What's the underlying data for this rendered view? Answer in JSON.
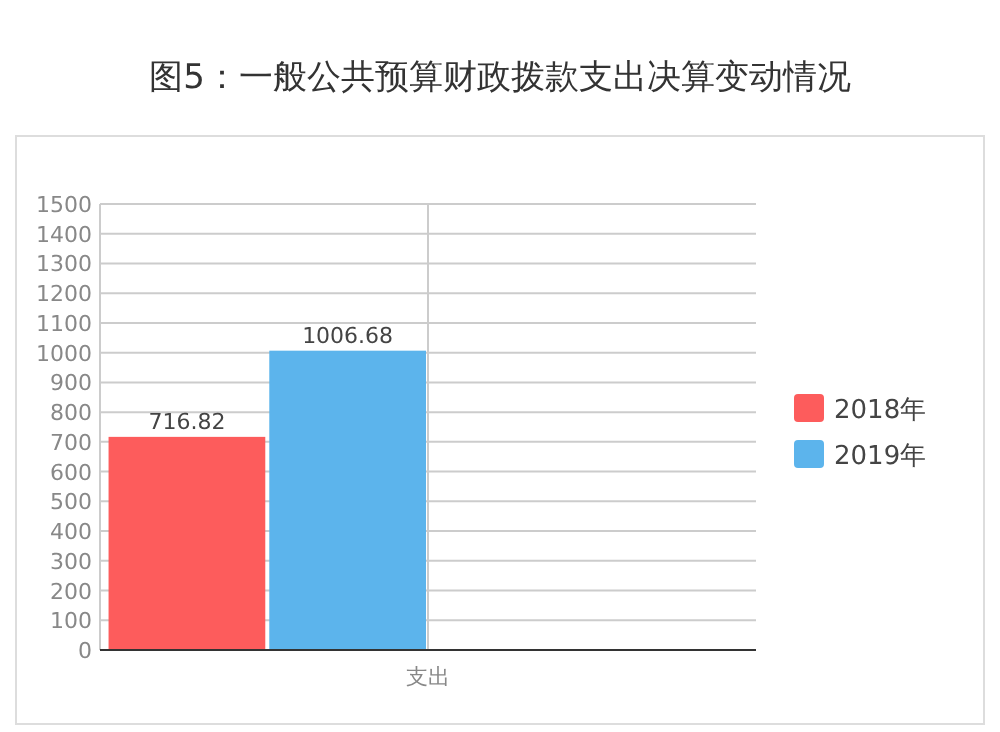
{
  "chart_data": {
    "type": "bar",
    "title": "图5：一般公共预算财政拨款支出决算变动情况",
    "categories": [
      "支出"
    ],
    "series": [
      {
        "name": "2018年",
        "color": "#fd5c5c",
        "values": [
          716.82
        ]
      },
      {
        "name": "2019年",
        "color": "#5cb4ec",
        "values": [
          1006.68
        ]
      }
    ],
    "ylim": [
      0,
      1500
    ],
    "yticks": [
      0,
      100,
      200,
      300,
      400,
      500,
      600,
      700,
      800,
      900,
      1000,
      1100,
      1200,
      1300,
      1400,
      1500
    ],
    "grid": true,
    "legend": "right",
    "data_labels": true
  }
}
